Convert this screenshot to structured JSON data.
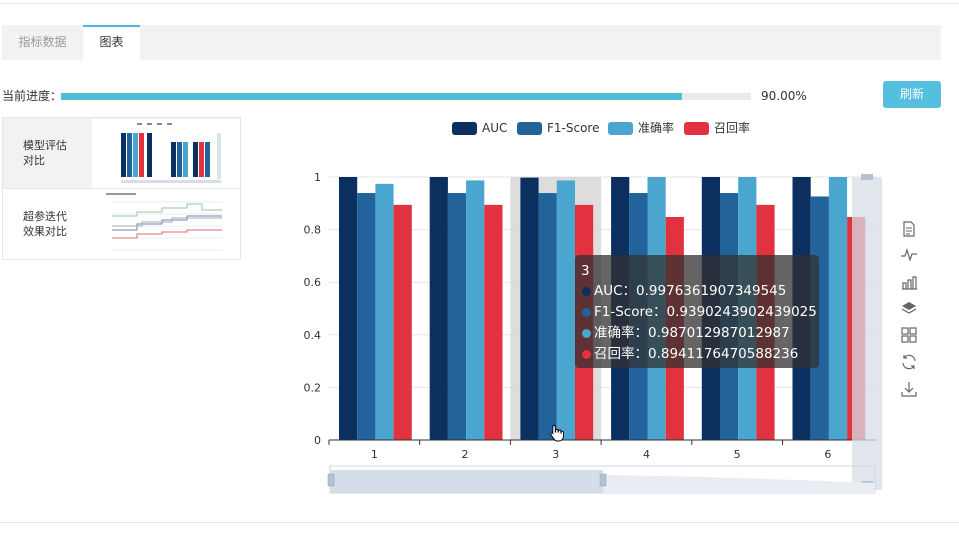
{
  "tabs": [
    {
      "label": "指标数据"
    },
    {
      "label": "图表"
    }
  ],
  "progress": {
    "label": "当前进度：",
    "value": 0.9,
    "text": "90.00%"
  },
  "refresh_label": "刷新",
  "side_items": [
    {
      "label_line1": "模型评估",
      "label_line2": "对比"
    },
    {
      "label_line1": "超参迭代",
      "label_line2": "效果对比"
    }
  ],
  "colors": {
    "accent": "#4fbcd8",
    "auc": "#0b2f5e",
    "f1": "#21639a",
    "acc": "#4aa6cf",
    "recall": "#e3323f"
  },
  "chart_data": {
    "type": "bar",
    "categories": [
      "1",
      "2",
      "3",
      "4",
      "5",
      "6"
    ],
    "series": [
      {
        "name": "AUC",
        "values": [
          1.0,
          1.0,
          0.9976,
          1.0,
          1.0,
          1.0
        ]
      },
      {
        "name": "F1-Score",
        "values": [
          0.939,
          0.939,
          0.939,
          0.939,
          0.939,
          0.926
        ]
      },
      {
        "name": "准确率",
        "values": [
          0.974,
          0.987,
          0.987,
          1.0,
          1.0,
          1.0
        ]
      },
      {
        "name": "召回率",
        "values": [
          0.894,
          0.894,
          0.894,
          0.848,
          0.894,
          0.848
        ]
      }
    ],
    "ylim": [
      0,
      1
    ],
    "yticks": [
      "0",
      "0.2",
      "0.4",
      "0.6",
      "0.8",
      "1"
    ],
    "grid": true,
    "legend_position": "top",
    "highlighted_category": "3"
  },
  "tooltip": {
    "title": "3",
    "rows": [
      {
        "label": "AUC：0.9976361907349545"
      },
      {
        "label": "F1-Score：0.9390243902439025"
      },
      {
        "label": "准确率：0.987012987012987"
      },
      {
        "label": "召回率：0.8941176470588236"
      }
    ]
  },
  "toolbox_icons": [
    "data-view-icon",
    "line-chart-icon",
    "bar-chart-icon",
    "stack-icon",
    "tiled-icon",
    "restore-icon",
    "download-icon"
  ]
}
